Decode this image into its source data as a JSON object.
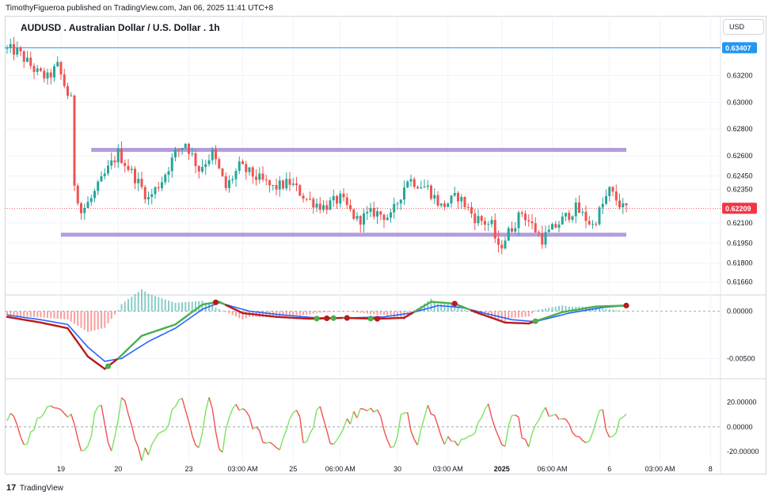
{
  "header": {
    "publisher": "TimothyFigueroa published on TradingView.com, Jan 06, 2025 11:41 UTC+8",
    "title": "AUDUSD . Australian Dollar / U.S. Dollar . 1h",
    "currency": "USD"
  },
  "footer": {
    "logo_glyph": "17",
    "brand": "TradingView"
  },
  "colors": {
    "up": "#26a69a",
    "down": "#ef5350",
    "zone": "#b39ddb",
    "hline": "#2196f3",
    "last_price": "#f23645",
    "signal_green": "#4caf50",
    "signal_red": "#b71c1c",
    "macd_line": "#2962ff",
    "osc_up": "#7be35f",
    "osc_down": "#ef5350"
  },
  "chart_data": [
    {
      "panel": "price",
      "type": "candlestick",
      "ylim": [
        0.6158,
        0.6348
      ],
      "y_ticks": [
        "0.63200",
        "0.63000",
        "0.62800",
        "0.62600",
        "0.62450",
        "0.62350",
        "0.62100",
        "0.61950",
        "0.61800",
        "0.61660"
      ],
      "y_tick_values": [
        0.632,
        0.63,
        0.628,
        0.626,
        0.6245,
        0.6235,
        0.621,
        0.6195,
        0.618,
        0.6166
      ],
      "x_ticks": [
        "19",
        "20",
        "23",
        "03:00 AM",
        "25",
        "06:00 AM",
        "30",
        "03:00 AM",
        "2025",
        "06:00 AM",
        "6",
        "03:00 AM",
        "8"
      ],
      "x_tick_bold": [
        "2025"
      ],
      "horizontal_line": {
        "price": 0.63407,
        "label": "0.63407"
      },
      "last_price": {
        "price": 0.62209,
        "label": "0.62209"
      },
      "zones": [
        {
          "name": "resistance",
          "price": 0.62645,
          "from_bar": 25,
          "to_bar": 184
        },
        {
          "name": "support",
          "price": 0.62012,
          "from_bar": 16,
          "to_bar": 184
        }
      ],
      "path_waypoints": [
        [
          0,
          0.634
        ],
        [
          4,
          0.6338
        ],
        [
          7,
          0.633
        ],
        [
          10,
          0.6322
        ],
        [
          13,
          0.6318
        ],
        [
          16,
          0.6327
        ],
        [
          19,
          0.6306
        ],
        [
          20,
          0.6301
        ],
        [
          21,
          0.624
        ],
        [
          23,
          0.6218
        ],
        [
          26,
          0.6228
        ],
        [
          31,
          0.625
        ],
        [
          34,
          0.6262
        ],
        [
          39,
          0.6244
        ],
        [
          43,
          0.6228
        ],
        [
          47,
          0.6242
        ],
        [
          51,
          0.6262
        ],
        [
          54,
          0.627
        ],
        [
          58,
          0.625
        ],
        [
          62,
          0.6262
        ],
        [
          66,
          0.6236
        ],
        [
          70,
          0.6252
        ],
        [
          75,
          0.6244
        ],
        [
          80,
          0.6236
        ],
        [
          85,
          0.624
        ],
        [
          90,
          0.6228
        ],
        [
          95,
          0.6222
        ],
        [
          100,
          0.6228
        ],
        [
          105,
          0.6212
        ],
        [
          110,
          0.6218
        ],
        [
          115,
          0.6214
        ],
        [
          120,
          0.6243
        ],
        [
          126,
          0.6236
        ],
        [
          130,
          0.6222
        ],
        [
          135,
          0.623
        ],
        [
          140,
          0.6214
        ],
        [
          145,
          0.6208
        ],
        [
          147,
          0.619
        ],
        [
          150,
          0.6203
        ],
        [
          154,
          0.6218
        ],
        [
          157,
          0.6208
        ],
        [
          160,
          0.6198
        ],
        [
          165,
          0.621
        ],
        [
          170,
          0.6221
        ],
        [
          175,
          0.6208
        ],
        [
          180,
          0.6234
        ],
        [
          184,
          0.6221
        ]
      ]
    },
    {
      "panel": "macd",
      "type": "histogram+line",
      "ylim": [
        -0.0069,
        0.0013
      ],
      "y_ticks": [
        "0.00000",
        "-0.00500"
      ],
      "y_tick_values": [
        0.0,
        -0.005
      ],
      "fast_waypoints": [
        [
          0,
          -0.0006
        ],
        [
          10,
          -0.0012
        ],
        [
          18,
          -0.0018
        ],
        [
          24,
          -0.0048
        ],
        [
          29,
          -0.0061
        ],
        [
          33,
          -0.005
        ],
        [
          40,
          -0.0026
        ],
        [
          50,
          -0.0014
        ],
        [
          58,
          0.0007
        ],
        [
          63,
          0.001
        ],
        [
          70,
          -0.0002
        ],
        [
          80,
          -0.0006
        ],
        [
          90,
          -0.0008
        ],
        [
          100,
          -0.0007
        ],
        [
          110,
          -0.0008
        ],
        [
          118,
          -0.0007
        ],
        [
          126,
          0.001
        ],
        [
          133,
          0.0008
        ],
        [
          140,
          -0.0002
        ],
        [
          148,
          -0.0012
        ],
        [
          155,
          -0.0013
        ],
        [
          165,
          -0.0001
        ],
        [
          175,
          0.0005
        ],
        [
          184,
          0.0006
        ]
      ],
      "slow_waypoints": [
        [
          0,
          -0.0004
        ],
        [
          10,
          -0.0009
        ],
        [
          18,
          -0.0014
        ],
        [
          24,
          -0.0038
        ],
        [
          29,
          -0.0053
        ],
        [
          34,
          -0.005
        ],
        [
          42,
          -0.0032
        ],
        [
          50,
          -0.0018
        ],
        [
          58,
          0.0002
        ],
        [
          63,
          0.0009
        ],
        [
          72,
          0.0
        ],
        [
          82,
          -0.0004
        ],
        [
          92,
          -0.0007
        ],
        [
          102,
          -0.0007
        ],
        [
          112,
          -0.0006
        ],
        [
          120,
          -0.0002
        ],
        [
          128,
          0.0006
        ],
        [
          135,
          0.0004
        ],
        [
          143,
          -0.0003
        ],
        [
          150,
          -0.0009
        ],
        [
          157,
          -0.0011
        ],
        [
          167,
          -0.0002
        ],
        [
          177,
          0.0004
        ],
        [
          184,
          0.0006
        ]
      ],
      "signals": [
        {
          "bar": 30,
          "color": "green"
        },
        {
          "bar": 62,
          "color": "red"
        },
        {
          "bar": 92,
          "color": "green"
        },
        {
          "bar": 95,
          "color": "red"
        },
        {
          "bar": 97,
          "color": "green"
        },
        {
          "bar": 101,
          "color": "red"
        },
        {
          "bar": 108,
          "color": "green"
        },
        {
          "bar": 110,
          "color": "red"
        },
        {
          "bar": 133,
          "color": "red"
        },
        {
          "bar": 157,
          "color": "green"
        },
        {
          "bar": 184,
          "color": "red"
        }
      ]
    },
    {
      "panel": "oscillator",
      "type": "line",
      "ylim": [
        -27,
        37
      ],
      "y_ticks": [
        "20.00000",
        "0.00000",
        "-20.00000"
      ],
      "y_tick_values": [
        20,
        0,
        -20
      ],
      "amplitude_points": [
        [
          0,
          10
        ],
        [
          30,
          24
        ],
        [
          60,
          20
        ],
        [
          100,
          12
        ],
        [
          140,
          15
        ],
        [
          184,
          12
        ]
      ]
    }
  ]
}
